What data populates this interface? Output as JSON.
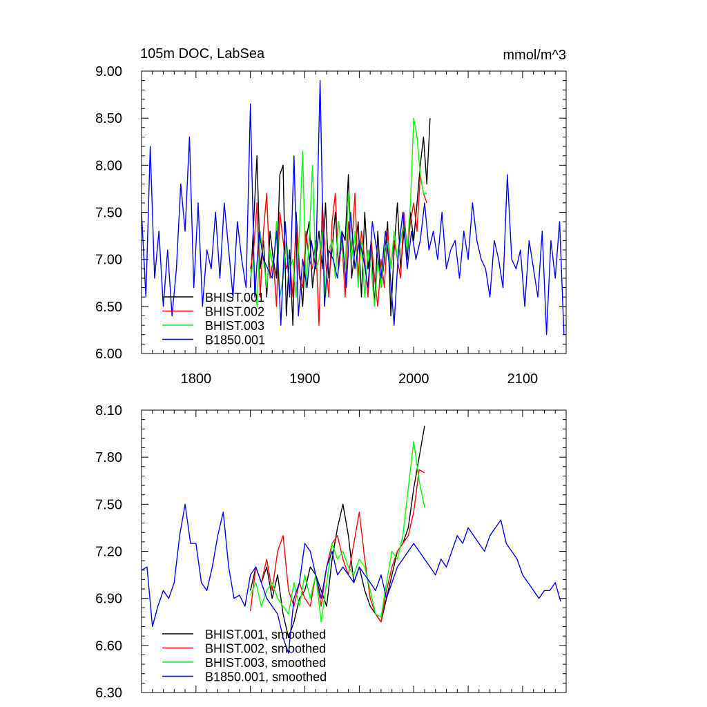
{
  "figure": {
    "title_left": "105m DOC, LabSea",
    "title_right": "mmol/m^3"
  },
  "colors": {
    "BHIST.001": "#000000",
    "BHIST.002": "#ff0000",
    "BHIST.003": "#00ff00",
    "B1850.001": "#0000ff"
  },
  "chart_data": [
    {
      "type": "line",
      "title": "105m DOC, LabSea",
      "units": "mmol/m^3",
      "xlim": [
        1750,
        2140
      ],
      "ylim": [
        6.0,
        9.0
      ],
      "xticks": [
        1800,
        1900,
        2000,
        2100
      ],
      "yticks": [
        "6.00",
        "6.50",
        "7.00",
        "7.50",
        "8.00",
        "8.50",
        "9.00"
      ],
      "legend_placement": "lower-left",
      "series": [
        {
          "name": "BHIST.001",
          "color": "#000000",
          "x": [
            1850,
            1853,
            1856,
            1859,
            1862,
            1865,
            1868,
            1871,
            1874,
            1877,
            1880,
            1883,
            1886,
            1889,
            1892,
            1895,
            1898,
            1901,
            1904,
            1907,
            1910,
            1913,
            1916,
            1919,
            1922,
            1925,
            1928,
            1931,
            1934,
            1937,
            1940,
            1943,
            1946,
            1949,
            1952,
            1955,
            1958,
            1961,
            1964,
            1967,
            1970,
            1973,
            1976,
            1979,
            1982,
            1985,
            1988,
            1991,
            1994,
            1997,
            2000,
            2003,
            2006,
            2009,
            2012,
            2015
          ],
          "y": [
            6.7,
            7.4,
            8.1,
            6.9,
            7.2,
            6.6,
            7.3,
            7.0,
            6.8,
            7.9,
            8.0,
            6.4,
            7.1,
            6.3,
            7.5,
            6.9,
            6.5,
            7.2,
            7.4,
            6.7,
            7.0,
            7.3,
            6.9,
            7.6,
            6.8,
            7.1,
            7.5,
            6.9,
            7.3,
            7.2,
            7.9,
            6.8,
            7.1,
            7.4,
            6.6,
            7.5,
            6.9,
            7.2,
            6.5,
            7.3,
            6.7,
            7.0,
            7.4,
            6.4,
            7.1,
            7.6,
            6.9,
            7.3,
            7.0,
            7.5,
            7.2,
            7.6,
            8.0,
            8.3,
            7.8,
            8.5
          ]
        },
        {
          "name": "BHIST.002",
          "color": "#ff0000",
          "x": [
            1850,
            1853,
            1856,
            1859,
            1862,
            1865,
            1868,
            1871,
            1874,
            1877,
            1880,
            1883,
            1886,
            1889,
            1892,
            1895,
            1898,
            1901,
            1904,
            1907,
            1910,
            1913,
            1916,
            1919,
            1922,
            1925,
            1928,
            1931,
            1934,
            1937,
            1940,
            1943,
            1946,
            1949,
            1952,
            1955,
            1958,
            1961,
            1964,
            1967,
            1970,
            1973,
            1976,
            1979,
            1982,
            1985,
            1988,
            1991,
            1994,
            1997,
            2000,
            2003,
            2006,
            2009,
            2012
          ],
          "y": [
            6.9,
            7.1,
            7.6,
            6.6,
            7.3,
            7.7,
            6.8,
            7.0,
            6.5,
            7.5,
            7.2,
            6.9,
            7.0,
            6.6,
            7.4,
            6.8,
            6.7,
            7.3,
            7.0,
            6.9,
            7.2,
            6.3,
            7.6,
            7.0,
            6.6,
            7.4,
            7.7,
            6.9,
            7.2,
            6.6,
            7.4,
            7.1,
            7.7,
            6.8,
            7.3,
            7.0,
            6.6,
            7.2,
            6.8,
            6.5,
            7.0,
            6.7,
            7.3,
            6.9,
            7.2,
            7.0,
            6.8,
            7.5,
            7.1,
            7.4,
            7.6,
            7.3,
            7.9,
            7.7,
            7.6
          ]
        },
        {
          "name": "BHIST.003",
          "color": "#00ff00",
          "x": [
            1850,
            1853,
            1856,
            1859,
            1862,
            1865,
            1868,
            1871,
            1874,
            1877,
            1880,
            1883,
            1886,
            1889,
            1892,
            1895,
            1898,
            1901,
            1904,
            1907,
            1910,
            1913,
            1916,
            1919,
            1922,
            1925,
            1928,
            1931,
            1934,
            1937,
            1940,
            1943,
            1946,
            1949,
            1952,
            1955,
            1958,
            1961,
            1964,
            1967,
            1970,
            1973,
            1976,
            1979,
            1982,
            1985,
            1988,
            1991,
            1994,
            1997,
            2000,
            2003,
            2006,
            2009,
            2012
          ],
          "y": [
            6.8,
            7.0,
            6.5,
            7.3,
            7.0,
            6.7,
            7.1,
            6.9,
            7.4,
            6.6,
            6.8,
            7.2,
            6.9,
            7.0,
            6.6,
            7.3,
            8.15,
            6.7,
            7.2,
            8.0,
            6.9,
            7.0,
            7.3,
            6.6,
            7.1,
            7.2,
            6.8,
            7.4,
            7.1,
            6.9,
            7.7,
            7.0,
            7.3,
            6.7,
            7.2,
            6.6,
            7.1,
            6.9,
            6.5,
            7.0,
            6.7,
            7.1,
            7.2,
            6.9,
            7.3,
            7.0,
            7.2,
            7.4,
            7.1,
            7.6,
            8.5,
            8.3,
            7.9,
            7.7,
            7.7
          ]
        },
        {
          "name": "B1850.001",
          "color": "#0000ff",
          "x": [
            1750,
            1754,
            1758,
            1762,
            1766,
            1770,
            1774,
            1778,
            1782,
            1786,
            1790,
            1794,
            1798,
            1802,
            1806,
            1810,
            1814,
            1818,
            1822,
            1826,
            1830,
            1834,
            1838,
            1842,
            1846,
            1850,
            1854,
            1858,
            1862,
            1866,
            1870,
            1874,
            1878,
            1882,
            1886,
            1890,
            1894,
            1898,
            1902,
            1906,
            1910,
            1914,
            1918,
            1922,
            1926,
            1930,
            1934,
            1938,
            1942,
            1946,
            1950,
            1954,
            1958,
            1962,
            1966,
            1970,
            1974,
            1978,
            1982,
            1986,
            1990,
            1994,
            1998,
            2002,
            2006,
            2010,
            2014,
            2018,
            2022,
            2026,
            2030,
            2034,
            2038,
            2042,
            2046,
            2050,
            2054,
            2058,
            2062,
            2066,
            2070,
            2074,
            2078,
            2082,
            2086,
            2090,
            2094,
            2098,
            2102,
            2106,
            2110,
            2114,
            2118,
            2122,
            2126,
            2130,
            2134,
            2138
          ],
          "y": [
            7.5,
            6.6,
            8.2,
            6.8,
            7.3,
            6.5,
            7.1,
            6.4,
            6.9,
            7.8,
            7.3,
            8.3,
            6.7,
            7.6,
            6.5,
            7.1,
            6.9,
            7.5,
            6.8,
            7.6,
            7.1,
            6.6,
            7.4,
            7.0,
            6.7,
            8.65,
            6.6,
            7.3,
            7.0,
            6.9,
            6.8,
            7.3,
            6.3,
            7.4,
            6.6,
            8.1,
            6.4,
            7.0,
            6.7,
            7.2,
            6.9,
            8.9,
            6.5,
            7.1,
            7.0,
            6.8,
            7.3,
            6.7,
            7.5,
            6.9,
            7.2,
            7.0,
            6.7,
            7.4,
            7.1,
            6.8,
            7.3,
            6.9,
            6.3,
            7.1,
            7.5,
            6.9,
            7.3,
            7.0,
            7.2,
            7.6,
            7.1,
            7.3,
            7.0,
            7.5,
            6.9,
            7.1,
            7.2,
            6.8,
            7.3,
            7.0,
            7.6,
            7.2,
            7.0,
            6.9,
            6.6,
            7.2,
            7.0,
            6.7,
            7.9,
            7.0,
            6.9,
            7.1,
            6.5,
            7.2,
            6.9,
            6.6,
            7.3,
            6.2,
            7.2,
            6.8,
            7.4,
            6.2
          ]
        }
      ]
    },
    {
      "type": "line",
      "xlim": [
        1750,
        2140
      ],
      "ylim": [
        6.3,
        8.1
      ],
      "yticks": [
        "6.30",
        "6.60",
        "6.90",
        "7.20",
        "7.50",
        "7.80",
        "8.10"
      ],
      "legend_placement": "lower-left",
      "series": [
        {
          "name": "BHIST.001, smoothed",
          "color": "#000000",
          "x": [
            1850,
            1855,
            1860,
            1865,
            1870,
            1875,
            1880,
            1885,
            1890,
            1895,
            1900,
            1905,
            1910,
            1915,
            1920,
            1925,
            1930,
            1935,
            1940,
            1945,
            1950,
            1955,
            1960,
            1965,
            1970,
            1975,
            1980,
            1985,
            1990,
            1995,
            2000,
            2005,
            2010
          ],
          "y": [
            6.95,
            7.1,
            7.0,
            7.1,
            6.9,
            7.05,
            6.8,
            6.65,
            6.75,
            6.9,
            6.95,
            7.1,
            7.05,
            6.95,
            6.85,
            7.15,
            7.35,
            7.5,
            7.3,
            7.0,
            7.1,
            6.95,
            6.85,
            6.8,
            6.75,
            6.9,
            7.05,
            7.2,
            7.25,
            7.35,
            7.6,
            7.8,
            8.0
          ]
        },
        {
          "name": "BHIST.002, smoothed",
          "color": "#ff0000",
          "x": [
            1850,
            1855,
            1860,
            1865,
            1870,
            1875,
            1880,
            1885,
            1890,
            1895,
            1900,
            1905,
            1910,
            1915,
            1920,
            1925,
            1930,
            1935,
            1940,
            1945,
            1950,
            1955,
            1960,
            1965,
            1970,
            1975,
            1980,
            1985,
            1990,
            1995,
            2000,
            2005,
            2010
          ],
          "y": [
            6.82,
            7.1,
            7.0,
            7.15,
            6.95,
            7.2,
            7.3,
            6.95,
            6.85,
            7.0,
            6.9,
            6.85,
            7.05,
            6.85,
            7.1,
            7.25,
            7.3,
            7.15,
            7.05,
            7.25,
            7.45,
            7.15,
            6.9,
            6.8,
            6.75,
            6.95,
            7.1,
            7.2,
            7.25,
            7.3,
            7.45,
            7.72,
            7.7
          ]
        },
        {
          "name": "BHIST.003, smoothed",
          "color": "#00ff00",
          "x": [
            1850,
            1855,
            1860,
            1865,
            1870,
            1875,
            1880,
            1885,
            1890,
            1895,
            1900,
            1905,
            1910,
            1915,
            1920,
            1925,
            1930,
            1935,
            1940,
            1945,
            1950,
            1955,
            1960,
            1965,
            1970,
            1975,
            1980,
            1985,
            1990,
            1995,
            2000,
            2005,
            2010
          ],
          "y": [
            6.92,
            7.0,
            6.85,
            6.95,
            7.0,
            6.9,
            6.85,
            6.8,
            7.0,
            6.85,
            7.05,
            6.9,
            7.05,
            6.75,
            7.0,
            7.25,
            7.15,
            7.2,
            7.1,
            7.05,
            7.15,
            7.1,
            6.95,
            6.8,
            6.78,
            7.0,
            7.2,
            7.15,
            7.3,
            7.6,
            7.9,
            7.65,
            7.48
          ]
        },
        {
          "name": "B1850.001, smoothed",
          "color": "#0000ff",
          "x": [
            1750,
            1755,
            1760,
            1765,
            1770,
            1775,
            1780,
            1785,
            1790,
            1795,
            1800,
            1805,
            1810,
            1815,
            1820,
            1825,
            1830,
            1835,
            1840,
            1845,
            1850,
            1855,
            1860,
            1865,
            1870,
            1875,
            1880,
            1885,
            1890,
            1895,
            1900,
            1905,
            1910,
            1915,
            1920,
            1925,
            1930,
            1935,
            1940,
            1945,
            1950,
            1955,
            1960,
            1965,
            1970,
            1975,
            1980,
            1985,
            1990,
            1995,
            2000,
            2005,
            2010,
            2015,
            2020,
            2025,
            2030,
            2035,
            2040,
            2045,
            2050,
            2055,
            2060,
            2065,
            2070,
            2075,
            2080,
            2085,
            2090,
            2095,
            2100,
            2105,
            2110,
            2115,
            2120,
            2125,
            2130,
            2135
          ],
          "y": [
            7.08,
            7.1,
            6.72,
            6.85,
            6.95,
            6.9,
            7.0,
            7.3,
            7.5,
            7.25,
            7.25,
            7.0,
            6.95,
            7.1,
            7.3,
            7.45,
            7.1,
            6.9,
            6.92,
            6.85,
            7.05,
            7.1,
            7.0,
            6.9,
            6.85,
            6.8,
            6.65,
            6.55,
            6.9,
            7.0,
            7.25,
            7.2,
            7.05,
            6.9,
            7.1,
            7.2,
            7.05,
            7.1,
            7.05,
            7.0,
            7.1,
            7.05,
            7.0,
            6.95,
            7.05,
            6.9,
            7.0,
            7.1,
            7.15,
            7.2,
            7.25,
            7.2,
            7.15,
            7.1,
            7.05,
            7.15,
            7.1,
            7.2,
            7.3,
            7.25,
            7.35,
            7.3,
            7.25,
            7.2,
            7.3,
            7.35,
            7.4,
            7.25,
            7.2,
            7.15,
            7.05,
            7.0,
            6.95,
            6.9,
            6.95,
            6.95,
            7.0,
            6.88
          ]
        }
      ]
    }
  ]
}
